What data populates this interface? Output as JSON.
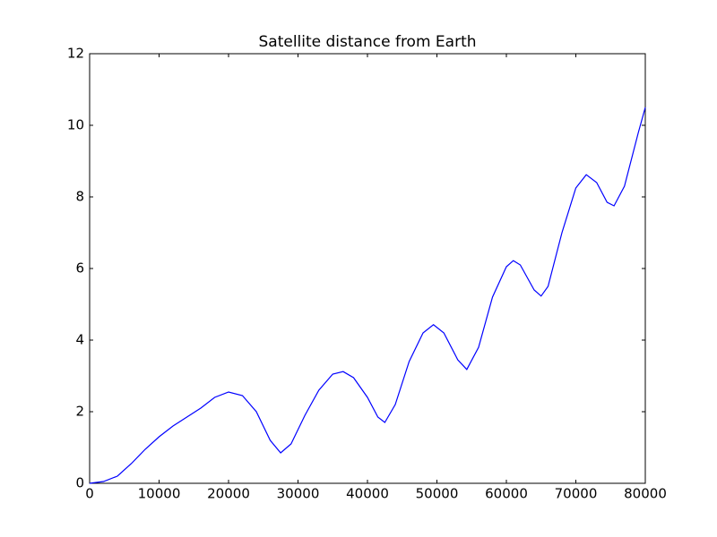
{
  "chart_data": {
    "type": "line",
    "title": "Satellite distance from Earth",
    "x": [
      0,
      2000,
      4000,
      6000,
      8000,
      10000,
      12000,
      14000,
      16000,
      18000,
      20000,
      22000,
      24000,
      26000,
      27500,
      29000,
      31000,
      33000,
      35000,
      36500,
      38000,
      40000,
      41500,
      42500,
      44000,
      46000,
      48000,
      49500,
      51000,
      53000,
      54300,
      56000,
      58000,
      60000,
      61000,
      62000,
      64000,
      65000,
      66000,
      68000,
      70000,
      71500,
      73000,
      74500,
      75500,
      77000,
      79000,
      80000
    ],
    "series": [
      {
        "color": "#0000ff",
        "values": [
          0,
          0.05,
          0.2,
          0.55,
          0.95,
          1.3,
          1.6,
          1.85,
          2.1,
          2.4,
          2.55,
          2.45,
          2.0,
          1.2,
          0.85,
          1.1,
          1.9,
          2.6,
          3.05,
          3.12,
          2.95,
          2.4,
          1.85,
          1.7,
          2.2,
          3.4,
          4.2,
          4.43,
          4.2,
          3.45,
          3.18,
          3.8,
          5.2,
          6.05,
          6.22,
          6.1,
          5.4,
          5.23,
          5.5,
          7.0,
          8.25,
          8.62,
          8.4,
          7.85,
          7.75,
          8.3,
          9.8,
          10.5
        ]
      }
    ],
    "xlim": [
      0,
      80000
    ],
    "xticks": [
      0,
      10000,
      20000,
      30000,
      40000,
      50000,
      60000,
      70000,
      80000
    ],
    "ylim": [
      0,
      12
    ],
    "yticks": [
      0,
      2,
      4,
      6,
      8,
      10,
      12
    ]
  }
}
